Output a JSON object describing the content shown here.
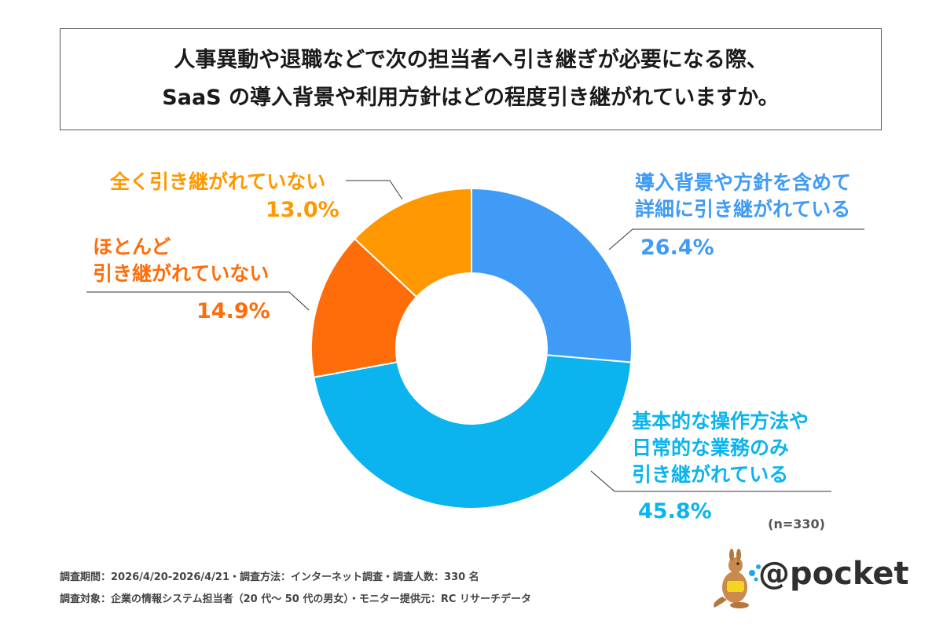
{
  "title": {
    "line1": "人事異動や退職などで次の担当者へ引き継ぎが必要になる際、",
    "line2": "SaaS の導入背景や利用方針はどの程度引き継がれていますか。"
  },
  "chart_data": {
    "type": "donut",
    "slices": [
      {
        "label_lines": [
          "導入背景や方針を含めて",
          "詳細に引き継がれている"
        ],
        "value": 26.4,
        "value_label": "26.4%",
        "color": "#3F9BF5"
      },
      {
        "label_lines": [
          "基本的な操作方法や",
          "日常的な業務のみ",
          "引き継がれている"
        ],
        "value": 45.8,
        "value_label": "45.8%",
        "color": "#0BB4EE"
      },
      {
        "label_lines": [
          "ほとんど",
          "引き継がれていない"
        ],
        "value": 14.9,
        "value_label": "14.9%",
        "color": "#FF6C0A"
      },
      {
        "label_lines": [
          "全く引き継がれていない"
        ],
        "value": 13.0,
        "value_label": "13.0%",
        "color": "#FF9800"
      }
    ],
    "sample_size": "(n=330)"
  },
  "footer": {
    "line1": "調査期間：2026/4/20-2026/4/21・調査方法：インターネット調査・調査人数：330 名",
    "line2": "調査対象：企業の情報システム担当者（20 代～ 50 代の男女）・モニター提供元：RC リサーチデータ"
  },
  "logo": {
    "text": "@pocket",
    "icon": "kangaroo-mascot-icon"
  }
}
